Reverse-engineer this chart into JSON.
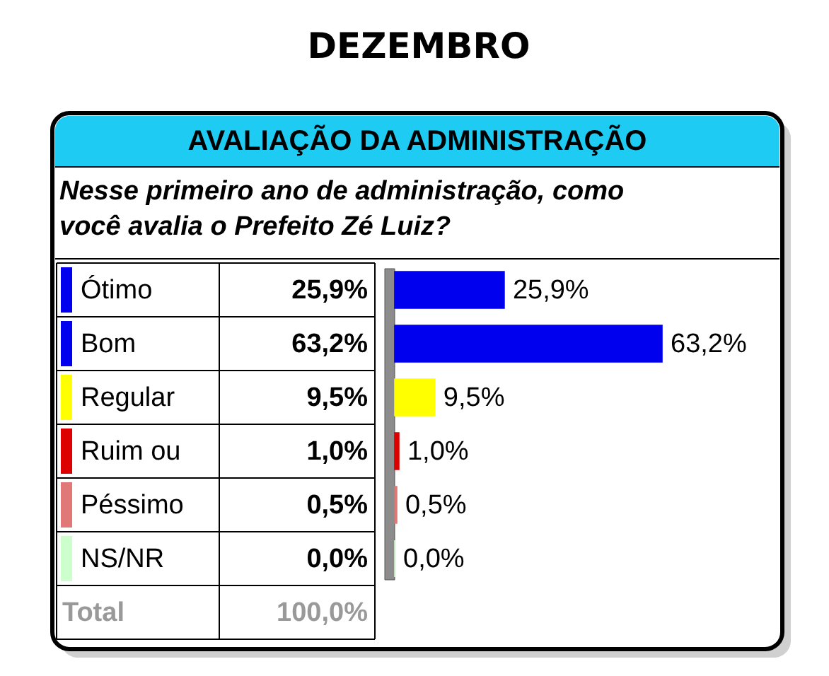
{
  "chart_data": {
    "type": "bar",
    "orientation": "horizontal",
    "title": "DEZEMBRO",
    "subtitle": "AVALIAÇÃO DA ADMINISTRAÇÃO",
    "annotations": [
      "Nesse primeiro ano de administração, como você avalia o Prefeito Zé Luiz?",
      "Total",
      "100,0%"
    ],
    "categories": [
      "Ótimo",
      "Bom",
      "Regular",
      "Ruim ou",
      "Péssimo",
      "NS/NR"
    ],
    "values": [
      25.9,
      63.2,
      9.5,
      1.0,
      0.5,
      0.0
    ],
    "colors": [
      "#0000ee",
      "#0000ee",
      "#ffff00",
      "#dd0000",
      "#e07878",
      "#ccffcc"
    ],
    "value_labels": [
      "25,9%",
      "63,2%",
      "9,5%",
      "1,0%",
      "0,5%",
      "0,0%"
    ]
  }
}
